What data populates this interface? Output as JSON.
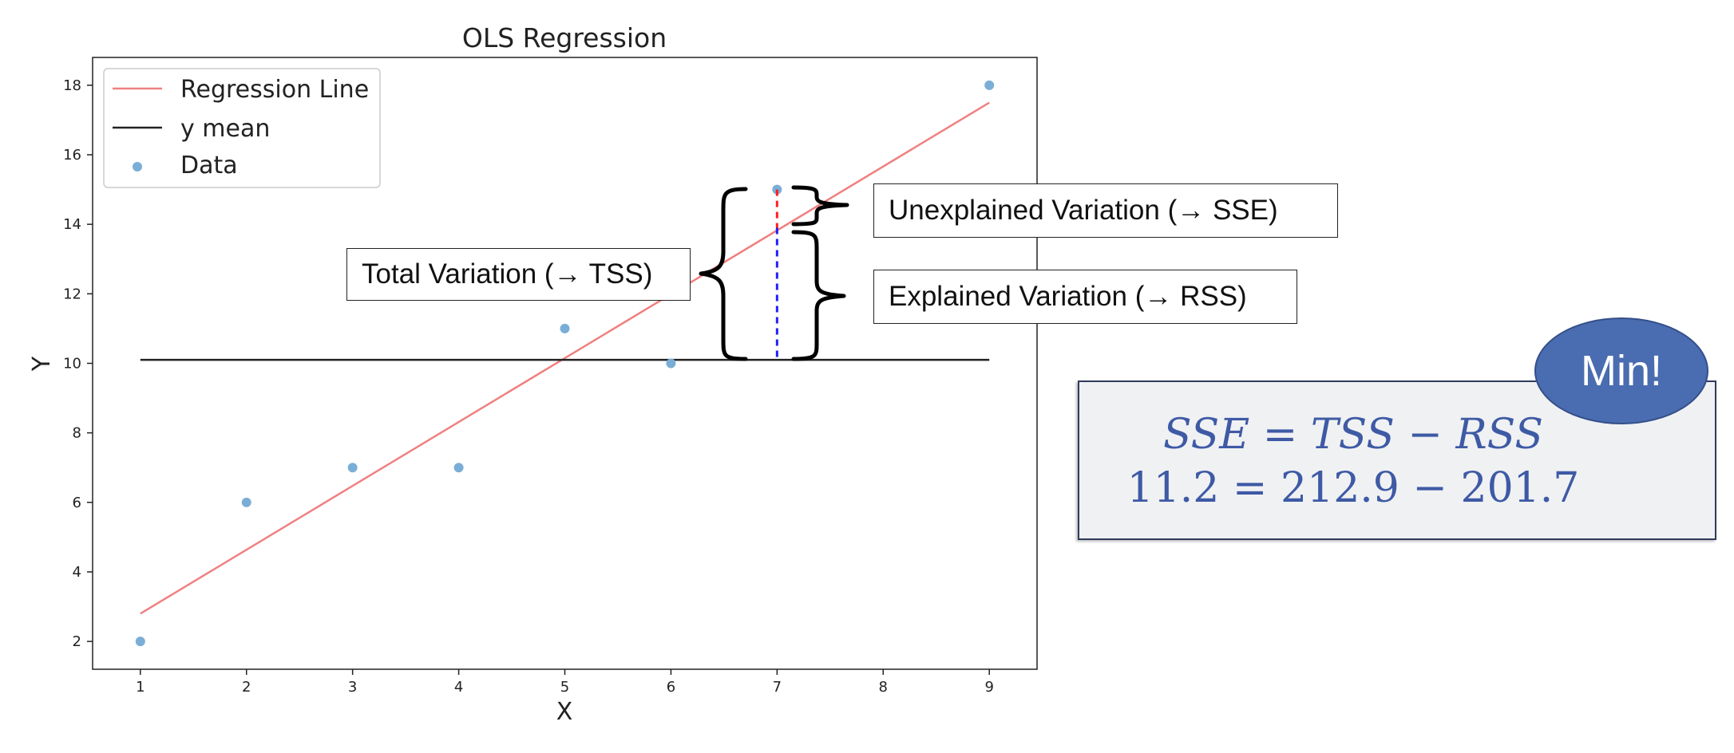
{
  "chart_data": {
    "type": "scatter",
    "title": "OLS Regression",
    "xlabel": "X",
    "ylabel": "Y",
    "xlim": [
      0.55,
      9.45
    ],
    "ylim": [
      1.2,
      18.8
    ],
    "xticks": [
      1,
      2,
      3,
      4,
      5,
      6,
      7,
      8,
      9
    ],
    "yticks": [
      2,
      4,
      6,
      8,
      10,
      12,
      14,
      16,
      18
    ],
    "grid": false,
    "legend_position": "top-left",
    "series": [
      {
        "name": "Regression Line",
        "kind": "line",
        "color": "#f08080",
        "x": [
          1,
          9
        ],
        "y": [
          2.8,
          17.5
        ]
      },
      {
        "name": "y mean",
        "kind": "line",
        "color": "#222222",
        "x": [
          1,
          9
        ],
        "y": [
          10.1,
          10.1
        ]
      },
      {
        "name": "Data",
        "kind": "scatter",
        "color": "#7aaed6",
        "x": [
          1,
          2,
          3,
          4,
          5,
          6,
          7,
          9
        ],
        "y": [
          2,
          6,
          7,
          7,
          11,
          10,
          15,
          18
        ]
      }
    ],
    "highlight": {
      "x": 7,
      "y_mean": 10.1,
      "y_hat": 13.9,
      "y_obs": 15,
      "unexplained_color": "#ff2020",
      "explained_color": "#2020ff"
    }
  },
  "annotations": {
    "total": "Total Variation (→ TSS)",
    "unexplained": "Unexplained Variation (→ SSE)",
    "explained": "Explained Variation (→ RSS)"
  },
  "formula": {
    "symbolic": "SSE = TSS − RSS",
    "numeric": "11.2 = 212.9 − 201.7"
  },
  "badge": "Min!"
}
